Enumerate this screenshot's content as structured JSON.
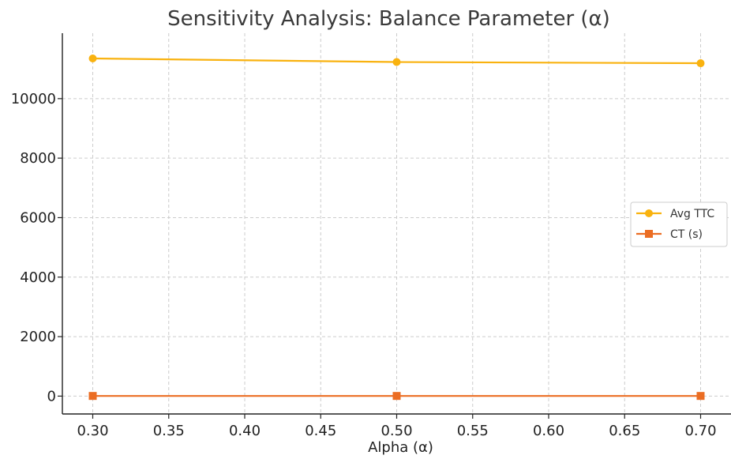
{
  "chart_data": {
    "type": "line",
    "title": "Sensitivity Analysis: Balance Parameter (α)",
    "xlabel": "Alpha (α)",
    "ylabel": "",
    "x": [
      0.3,
      0.5,
      0.7
    ],
    "xlim": [
      0.28,
      0.72
    ],
    "ylim": [
      -600,
      12200
    ],
    "xticks": [
      0.3,
      0.35,
      0.4,
      0.45,
      0.5,
      0.55,
      0.6,
      0.65,
      0.7
    ],
    "xtick_labels": [
      "0.30",
      "0.35",
      "0.40",
      "0.45",
      "0.50",
      "0.55",
      "0.60",
      "0.65",
      "0.70"
    ],
    "yticks": [
      0,
      2000,
      4000,
      6000,
      8000,
      10000
    ],
    "ytick_labels": [
      "0",
      "2000",
      "4000",
      "6000",
      "8000",
      "10000"
    ],
    "grid": true,
    "legend_position": "center-right",
    "series": [
      {
        "name": "Avg TTC",
        "values": [
          11350,
          11230,
          11190
        ],
        "color": "#f9b20f",
        "marker": "circle"
      },
      {
        "name": "CT (s)",
        "values": [
          6,
          6,
          6
        ],
        "color": "#eb6d23",
        "marker": "square"
      }
    ]
  }
}
